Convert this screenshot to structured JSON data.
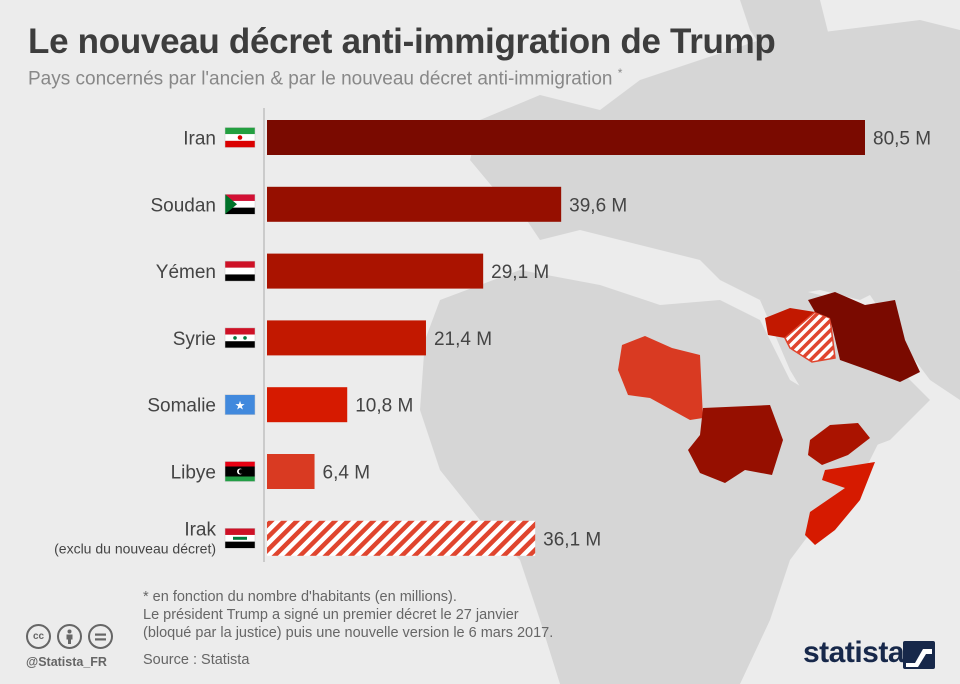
{
  "header": {
    "title": "Le nouveau décret anti-immigration de Trump",
    "subtitle": "Pays concernés par l'ancien & par le nouveau décret anti-immigration",
    "subtitle_mark": "*"
  },
  "chart_data": {
    "type": "bar",
    "orientation": "horizontal",
    "title": "Le nouveau décret anti-immigration de Trump",
    "xlabel": "",
    "ylabel": "",
    "xlim": [
      0,
      80.5
    ],
    "unit": "M",
    "categories": [
      "Iran",
      "Soudan",
      "Yémen",
      "Syrie",
      "Somalie",
      "Libye",
      "Irak"
    ],
    "category_notes": [
      "",
      "",
      "",
      "",
      "",
      "",
      "(exclu du nouveau décret)"
    ],
    "values": [
      80.5,
      39.6,
      29.1,
      21.4,
      10.8,
      6.4,
      36.1
    ],
    "value_labels": [
      "80,5 M",
      "39,6 M",
      "29,1 M",
      "21,4 M",
      "10,8 M",
      "6,4 M",
      "36,1 M"
    ],
    "bar_colors": [
      "#7a0a00",
      "#960f00",
      "#aa1300",
      "#c21800",
      "#d61a00",
      "#d93a22",
      "#e0452e"
    ],
    "hatched": [
      false,
      false,
      false,
      false,
      false,
      false,
      true
    ],
    "flags": [
      "iran-flag",
      "sudan-flag",
      "yemen-flag",
      "syria-flag",
      "somalia-flag",
      "libya-flag",
      "iraq-flag"
    ]
  },
  "footer": {
    "note1": "* en fonction du nombre d'habitants (en millions).",
    "note2": "Le président Trump a signé un premier décret le 27 janvier",
    "note3": "(bloqué par la justice) puis une nouvelle version le 6 mars 2017.",
    "source": "Source : Statista",
    "handle": "@Statista_FR",
    "brand": "statista",
    "cc_icons": [
      "cc-icon",
      "attribution-icon",
      "no-derivatives-icon"
    ]
  },
  "colors": {
    "background": "#ececec",
    "land": "#d6d6d6",
    "accent": "#7a0a00",
    "brand": "#17284a"
  }
}
